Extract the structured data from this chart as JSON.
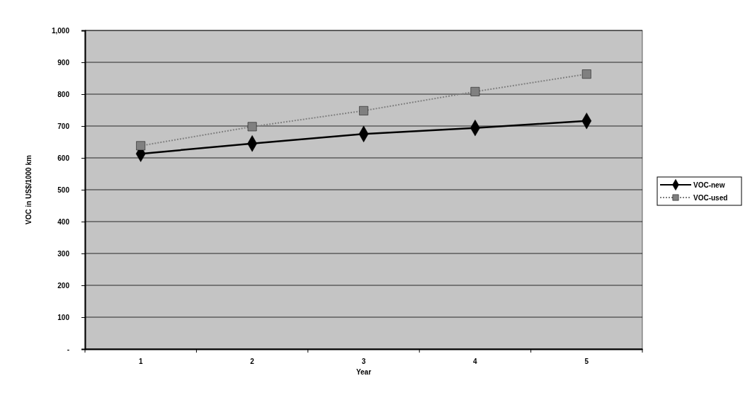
{
  "chart_data": {
    "type": "line",
    "xlabel": "Year",
    "ylabel": "VOC in US$/1000 km",
    "categories": [
      "1",
      "2",
      "3",
      "4",
      "5"
    ],
    "series": [
      {
        "name": "VOC-new",
        "color": "#000000",
        "marker": "diamond",
        "line_style": "solid",
        "values": [
          613,
          645,
          675,
          694,
          716
        ]
      },
      {
        "name": "VOC-used",
        "color": "#808080",
        "marker": "square",
        "line_style": "dotted",
        "values": [
          638,
          698,
          748,
          808,
          863
        ]
      }
    ],
    "ylim": [
      0,
      1000
    ],
    "yticks": [
      {
        "value": 0,
        "label": "-"
      },
      100,
      200,
      300,
      400,
      500,
      600,
      700,
      800,
      900,
      {
        "value": 1000,
        "label": "1,000"
      }
    ],
    "grid": "y",
    "legend": "right"
  }
}
